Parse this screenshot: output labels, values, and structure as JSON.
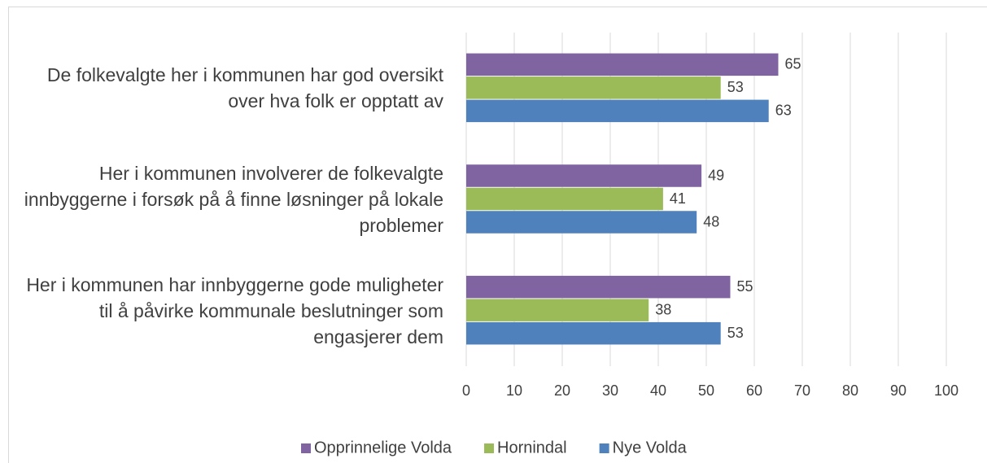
{
  "chart_data": {
    "type": "bar",
    "orientation": "horizontal",
    "categories": [
      "De folkevalgte her i kommunen har god oversikt over hva folk er opptatt av",
      "Her i kommunen involverer de folkevalgte innbyggerne i forsøk på å finne løsninger på lokale problemer",
      "Her i kommunen har innbyggerne gode muligheter til å påvirke kommunale beslutninger som engasjerer dem"
    ],
    "series": [
      {
        "name": "Opprinnelige Volda",
        "color": "#8064a2",
        "values": [
          65,
          49,
          55
        ]
      },
      {
        "name": "Hornindal",
        "color": "#9bbb59",
        "values": [
          53,
          41,
          38
        ]
      },
      {
        "name": "Nye Volda",
        "color": "#4f81bd",
        "values": [
          63,
          48,
          53
        ]
      }
    ],
    "xlim": [
      0,
      100
    ],
    "xticks": [
      0,
      10,
      20,
      30,
      40,
      50,
      60,
      70,
      80,
      90,
      100
    ],
    "grid": true,
    "legend": "bottom"
  }
}
